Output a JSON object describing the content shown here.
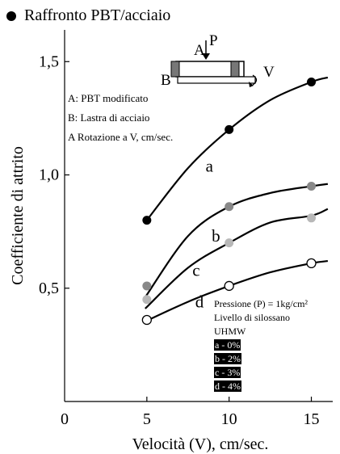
{
  "header": {
    "title": "Raffronto PBT/acciaio"
  },
  "notes": [
    "A: PBT modificato",
    "B: Lastra di acciaio",
    "A Rotazione a V, cm/sec."
  ],
  "diagram": {
    "label_a": "A",
    "label_p": "P",
    "label_b": "B",
    "label_v": "V"
  },
  "legend": {
    "pressure": "Pressione (P) = 1kg/cm²",
    "siloxane": "Livello di silossano",
    "material": "UHMW",
    "items": [
      "a - 0%",
      "b - 2%",
      "c - 3%",
      "d - 4%"
    ]
  },
  "chart_data": {
    "type": "line",
    "xlabel": "Velocità (V), cm/sec.",
    "ylabel": "Coefficiente di attrito",
    "xlim": [
      0,
      16.3
    ],
    "ylim": [
      0.0,
      1.64
    ],
    "x_ticks": [
      {
        "value": 0,
        "label": "0"
      },
      {
        "value": 5,
        "label": "5"
      },
      {
        "value": 10,
        "label": "10"
      },
      {
        "value": 15,
        "label": "15"
      }
    ],
    "y_ticks": [
      {
        "value": 0.5,
        "label": "0,5"
      },
      {
        "value": 1.0,
        "label": "1,0"
      },
      {
        "value": 1.5,
        "label": "1,5"
      }
    ],
    "series": [
      {
        "name": "a",
        "marker_color": "#000000",
        "marker_fill": "filled",
        "points": [
          [
            5,
            0.8
          ],
          [
            10,
            1.2
          ],
          [
            15,
            1.41
          ]
        ],
        "curve": [
          [
            5,
            0.8
          ],
          [
            7.5,
            1.03
          ],
          [
            10,
            1.2
          ],
          [
            12.5,
            1.33
          ],
          [
            15,
            1.41
          ],
          [
            16,
            1.43
          ]
        ],
        "label_at": [
          8.8,
          1.04
        ]
      },
      {
        "name": "b",
        "marker_color": "#888888",
        "marker_fill": "filled",
        "points": [
          [
            5,
            0.51
          ],
          [
            10,
            0.86
          ],
          [
            15,
            0.95
          ]
        ],
        "curve": [
          [
            4.9,
            0.46
          ],
          [
            7.5,
            0.73
          ],
          [
            10,
            0.86
          ],
          [
            12.5,
            0.92
          ],
          [
            15,
            0.95
          ],
          [
            16,
            0.96
          ]
        ],
        "label_at": [
          9.2,
          0.73
        ]
      },
      {
        "name": "c",
        "marker_color": "#b8b8b8",
        "marker_fill": "filled",
        "points": [
          [
            5,
            0.45
          ],
          [
            10,
            0.7
          ],
          [
            15,
            0.81
          ]
        ],
        "curve": [
          [
            4.9,
            0.41
          ],
          [
            7.5,
            0.59
          ],
          [
            10,
            0.7
          ],
          [
            12.5,
            0.79
          ],
          [
            15,
            0.82
          ],
          [
            16,
            0.85
          ]
        ],
        "label_at": [
          8.0,
          0.58
        ]
      },
      {
        "name": "d",
        "marker_color": "#000000",
        "marker_fill": "hollow",
        "points": [
          [
            5,
            0.36
          ],
          [
            10,
            0.51
          ],
          [
            15,
            0.61
          ]
        ],
        "curve": [
          [
            4.8,
            0.35
          ],
          [
            7.5,
            0.44
          ],
          [
            10,
            0.51
          ],
          [
            12.5,
            0.57
          ],
          [
            15,
            0.61
          ],
          [
            16,
            0.62
          ]
        ],
        "label_at": [
          8.2,
          0.44
        ]
      }
    ]
  }
}
